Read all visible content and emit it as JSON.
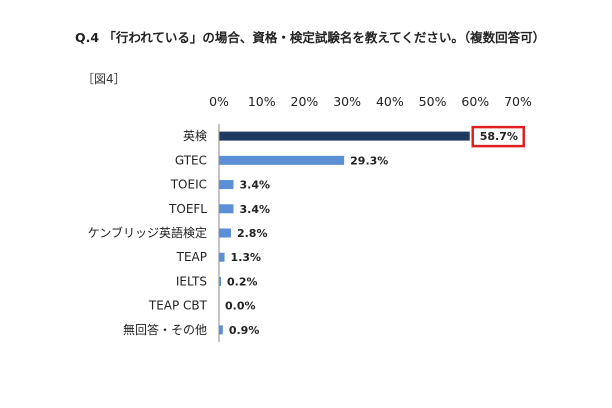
{
  "title": "Q.4 「行われている」の場合、資格・検定試験名を教えてください。（複数回答可）",
  "figure_label": "［図4］",
  "colors": {
    "bar": "#5b8fd6",
    "bar_highlight": "#1f3a60",
    "highlight_box": "#e02020",
    "axis": "#888888"
  },
  "chart_data": {
    "type": "bar",
    "orientation": "horizontal",
    "categories": [
      "英検",
      "GTEC",
      "TOEIC",
      "TOEFL",
      "ケンブリッジ英語検定",
      "TEAP",
      "IELTS",
      "TEAP CBT",
      "無回答・その他"
    ],
    "values": [
      58.7,
      29.3,
      3.4,
      3.4,
      2.8,
      1.3,
      0.2,
      0.0,
      0.9
    ],
    "value_labels": [
      "58.7%",
      "29.3%",
      "3.4%",
      "3.4%",
      "2.8%",
      "1.3%",
      "0.2%",
      "0.0%",
      "0.9%"
    ],
    "xlim": [
      0,
      70
    ],
    "ticks": [
      0,
      10,
      20,
      30,
      40,
      50,
      60,
      70
    ],
    "tick_labels": [
      "0%",
      "10%",
      "20%",
      "30%",
      "40%",
      "50%",
      "60%",
      "70%"
    ],
    "axis_position": "top",
    "grid": false,
    "highlight_index": 0
  }
}
